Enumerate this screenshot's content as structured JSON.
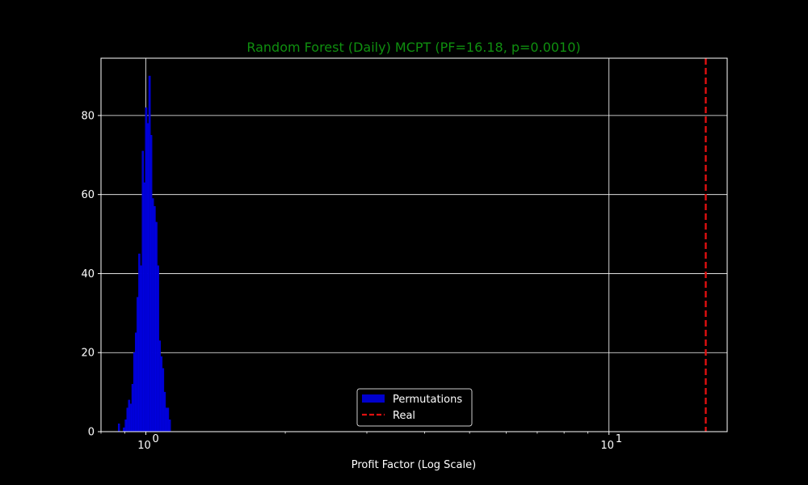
{
  "chart_data": {
    "type": "bar",
    "title": "Random Forest (Daily) MCPT (PF=16.18, p=0.0010)",
    "title_color": "#0f8f0f",
    "xlabel": "Profit Factor (Log Scale)",
    "ylabel": "",
    "x_scale": "log",
    "xlim": [
      0.8,
      18.0
    ],
    "ylim": [
      0,
      94.5
    ],
    "x_ticks": [
      {
        "value": 1,
        "label": "10",
        "exp": "0"
      },
      {
        "value": 10,
        "label": "10",
        "exp": "1"
      }
    ],
    "y_ticks": [
      {
        "value": 0,
        "label": "0"
      },
      {
        "value": 20,
        "label": "20"
      },
      {
        "value": 40,
        "label": "40"
      },
      {
        "value": 60,
        "label": "60"
      },
      {
        "value": 80,
        "label": "80"
      }
    ],
    "grid": true,
    "legend_position": "bottom-center",
    "histogram": {
      "name": "Permutations",
      "color": "#0000cc",
      "bins": [
        {
          "x0": 0.871,
          "x1": 0.878,
          "count": 2
        },
        {
          "x0": 0.878,
          "x1": 0.886,
          "count": 0
        },
        {
          "x0": 0.886,
          "x1": 0.893,
          "count": 0
        },
        {
          "x0": 0.893,
          "x1": 0.901,
          "count": 1
        },
        {
          "x0": 0.901,
          "x1": 0.909,
          "count": 3
        },
        {
          "x0": 0.909,
          "x1": 0.916,
          "count": 6
        },
        {
          "x0": 0.916,
          "x1": 0.924,
          "count": 8
        },
        {
          "x0": 0.924,
          "x1": 0.932,
          "count": 7
        },
        {
          "x0": 0.932,
          "x1": 0.94,
          "count": 12
        },
        {
          "x0": 0.94,
          "x1": 0.948,
          "count": 20
        },
        {
          "x0": 0.948,
          "x1": 0.956,
          "count": 25
        },
        {
          "x0": 0.956,
          "x1": 0.964,
          "count": 34
        },
        {
          "x0": 0.964,
          "x1": 0.972,
          "count": 45
        },
        {
          "x0": 0.972,
          "x1": 0.981,
          "count": 42
        },
        {
          "x0": 0.981,
          "x1": 0.989,
          "count": 71
        },
        {
          "x0": 0.989,
          "x1": 0.997,
          "count": 63
        },
        {
          "x0": 0.997,
          "x1": 1.006,
          "count": 82
        },
        {
          "x0": 1.006,
          "x1": 1.014,
          "count": 78
        },
        {
          "x0": 1.014,
          "x1": 1.023,
          "count": 90
        },
        {
          "x0": 1.023,
          "x1": 1.031,
          "count": 75
        },
        {
          "x0": 1.031,
          "x1": 1.04,
          "count": 59
        },
        {
          "x0": 1.04,
          "x1": 1.049,
          "count": 57
        },
        {
          "x0": 1.049,
          "x1": 1.058,
          "count": 53
        },
        {
          "x0": 1.058,
          "x1": 1.067,
          "count": 42
        },
        {
          "x0": 1.067,
          "x1": 1.076,
          "count": 23
        },
        {
          "x0": 1.076,
          "x1": 1.085,
          "count": 19
        },
        {
          "x0": 1.085,
          "x1": 1.094,
          "count": 16
        },
        {
          "x0": 1.094,
          "x1": 1.103,
          "count": 10
        },
        {
          "x0": 1.103,
          "x1": 1.112,
          "count": 6
        },
        {
          "x0": 1.112,
          "x1": 1.121,
          "count": 6
        },
        {
          "x0": 1.121,
          "x1": 1.131,
          "count": 3
        }
      ]
    },
    "reference_line": {
      "name": "Real",
      "value": 16.18,
      "color": "#e01010",
      "style": "dashed"
    }
  }
}
